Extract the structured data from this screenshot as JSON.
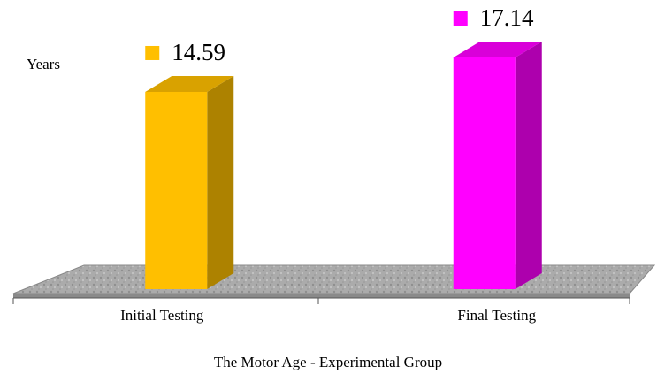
{
  "chart_data": {
    "type": "bar3d",
    "title": "The Motor Age - Experimental Group",
    "ylabel": "Years",
    "categories": [
      "Initial Testing",
      "Final Testing"
    ],
    "values": [
      14.59,
      17.14
    ],
    "colors": [
      "#ffbf00",
      "#ff00ff"
    ]
  }
}
